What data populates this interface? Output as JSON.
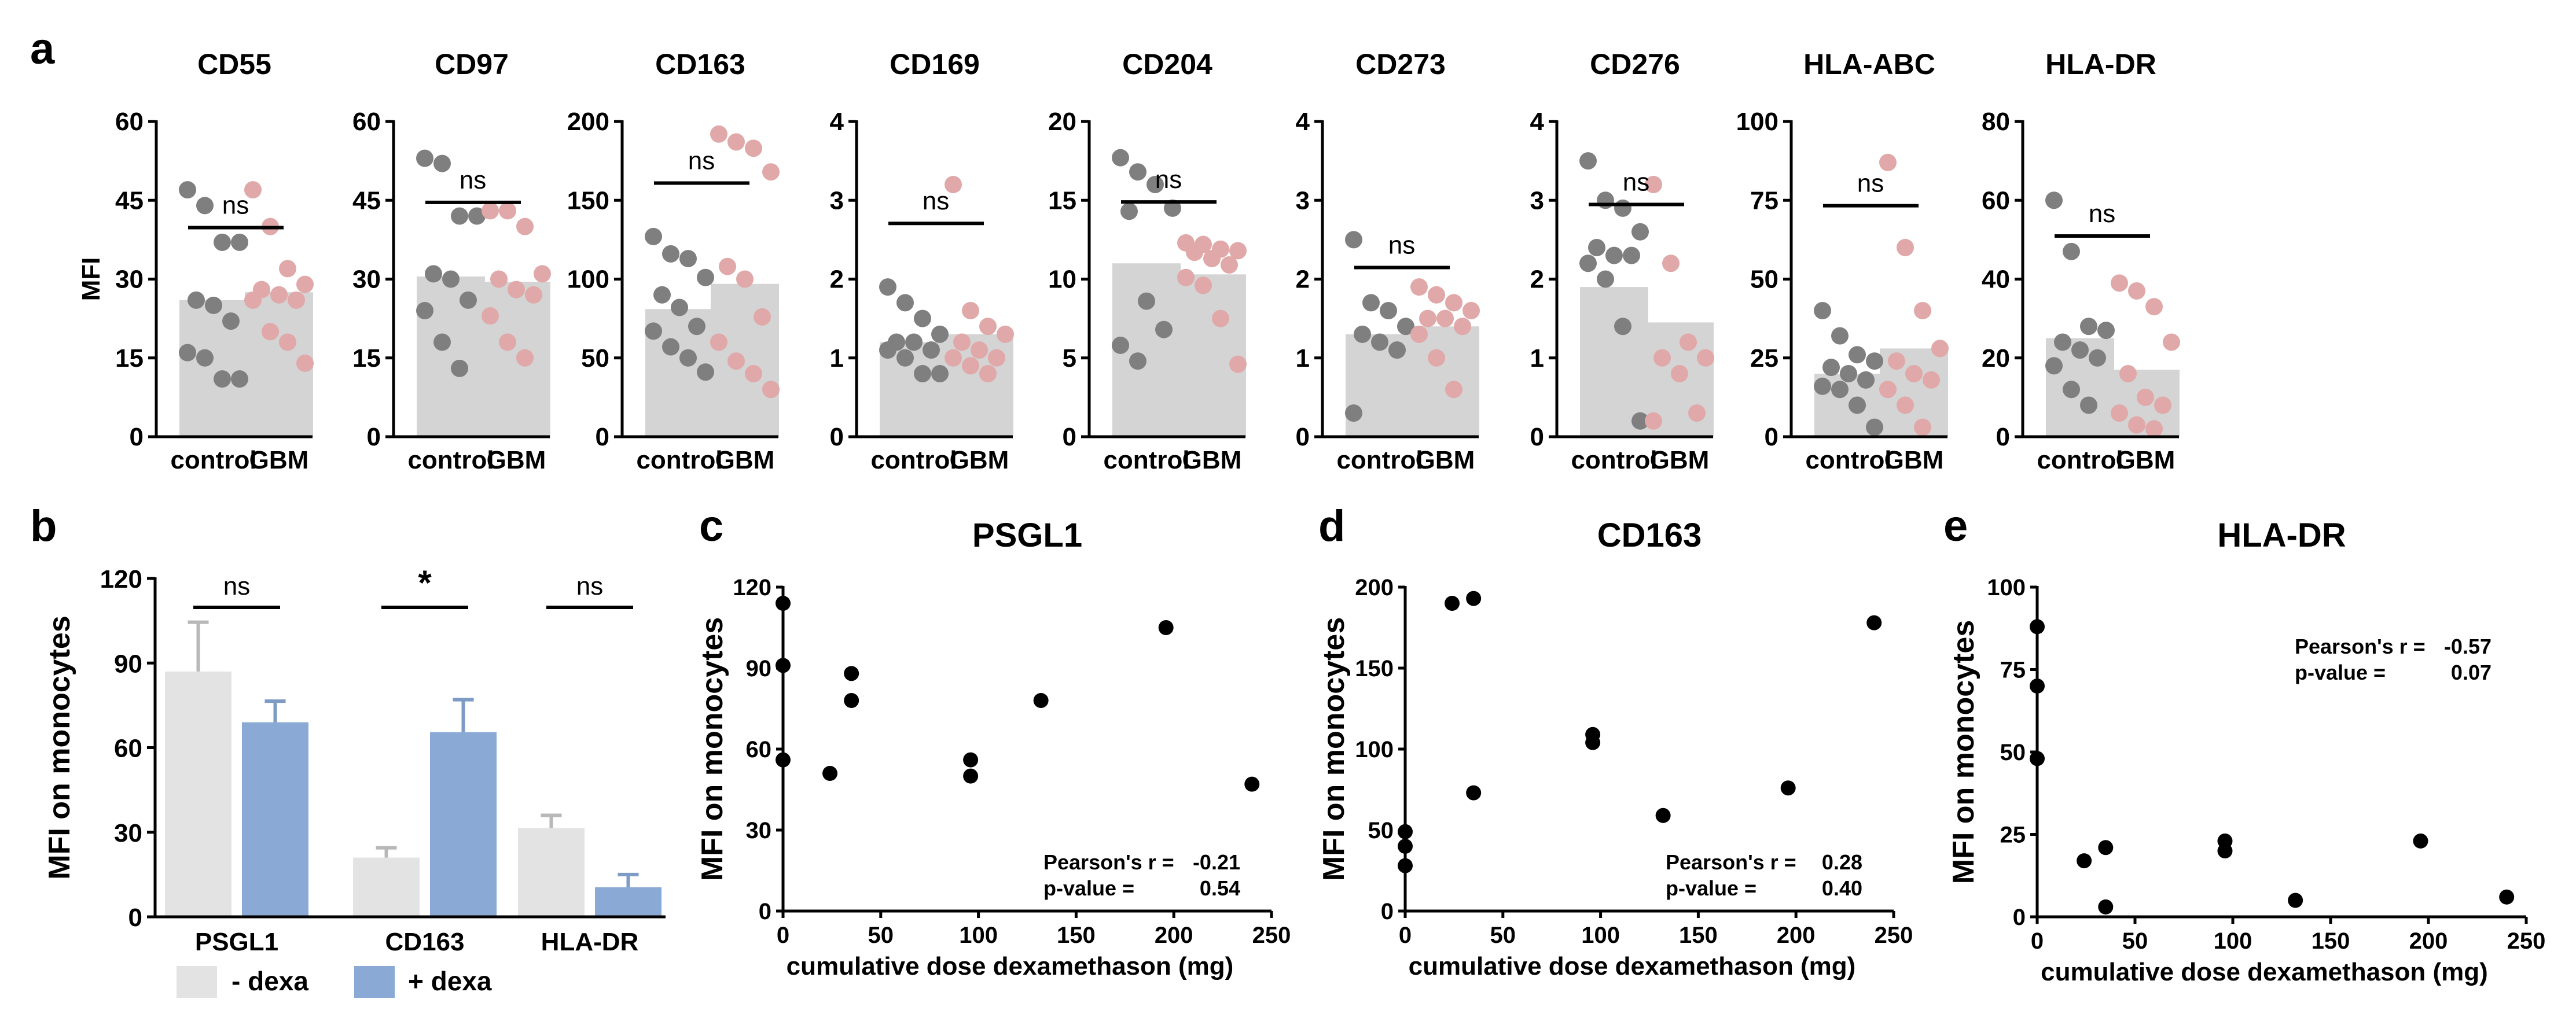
{
  "panel_labels": {
    "a": "a",
    "b": "b",
    "c": "c",
    "d": "d",
    "e": "e"
  },
  "colors": {
    "control_dot": "#7f7f7f",
    "gbm_dot": "#e0a8a8",
    "bar_a": "#d4d4d4",
    "bar_minus": "#e3e3e3",
    "bar_plus": "#8aaad5",
    "err_minus": "#b8b8b8",
    "err_plus": "#7e9bc5",
    "scatter_dot": "#000000"
  },
  "chart_data": [
    {
      "id": "a1",
      "type": "bar",
      "title": "CD55",
      "ylabel": "MFI",
      "ylim": [
        0,
        60
      ],
      "yticks": [
        "0",
        "15",
        "30",
        "45",
        "60"
      ],
      "categories": [
        "control",
        "GBM"
      ],
      "values": [
        26,
        27.5
      ],
      "sig": "ns",
      "points": [
        [
          47,
          44,
          37,
          37,
          26,
          25,
          22,
          16,
          15,
          11,
          11
        ],
        [
          47,
          40,
          32,
          29,
          28,
          27,
          26,
          26,
          20,
          18,
          14
        ]
      ]
    },
    {
      "id": "a2",
      "type": "bar",
      "title": "CD97",
      "ylabel": "",
      "ylim": [
        0,
        60
      ],
      "yticks": [
        "0",
        "15",
        "30",
        "45",
        "60"
      ],
      "categories": [
        "control",
        "GBM"
      ],
      "values": [
        30.5,
        29.5
      ],
      "sig": "ns",
      "points": [
        [
          53,
          52,
          42,
          42,
          31,
          30,
          26,
          24,
          18,
          13
        ],
        [
          43,
          43,
          40,
          31,
          30,
          28,
          27,
          23,
          18,
          15
        ]
      ]
    },
    {
      "id": "a3",
      "type": "bar",
      "title": "CD163",
      "ylabel": "",
      "ylim": [
        0,
        200
      ],
      "yticks": [
        "0",
        "50",
        "100",
        "150",
        "200"
      ],
      "categories": [
        "control",
        "GBM"
      ],
      "values": [
        81,
        97
      ],
      "sig": "ns",
      "points": [
        [
          127,
          116,
          113,
          101,
          90,
          82,
          70,
          67,
          57,
          50,
          41
        ],
        [
          192,
          187,
          183,
          168,
          108,
          100,
          76,
          60,
          48,
          40,
          30
        ]
      ]
    },
    {
      "id": "a4",
      "type": "bar",
      "title": "CD169",
      "ylabel": "",
      "ylim": [
        0,
        4
      ],
      "yticks": [
        "0",
        "1",
        "2",
        "3",
        "4"
      ],
      "categories": [
        "control",
        "GBM"
      ],
      "values": [
        1.2,
        1.3
      ],
      "sig": "ns",
      "points": [
        [
          1.9,
          1.7,
          1.5,
          1.3,
          1.2,
          1.2,
          1.1,
          1.1,
          1.0,
          0.8,
          0.8
        ],
        [
          3.2,
          1.6,
          1.4,
          1.3,
          1.2,
          1.1,
          1.0,
          1.0,
          0.9,
          0.8
        ]
      ]
    },
    {
      "id": "a5",
      "type": "bar",
      "title": "CD204",
      "ylabel": "",
      "ylim": [
        0,
        20
      ],
      "yticks": [
        "0",
        "5",
        "10",
        "15",
        "20"
      ],
      "categories": [
        "control",
        "GBM"
      ],
      "values": [
        11,
        10.3
      ],
      "sig": "ns",
      "points": [
        [
          17.7,
          16.8,
          16.0,
          14.5,
          14.3,
          8.6,
          6.8,
          5.8,
          4.8
        ],
        [
          12.3,
          12.2,
          11.9,
          11.8,
          11.7,
          11.3,
          10.9,
          10.1,
          9.6,
          7.5,
          4.6
        ]
      ]
    },
    {
      "id": "a6",
      "type": "bar",
      "title": "CD273",
      "ylabel": "",
      "ylim": [
        0,
        4
      ],
      "yticks": [
        "0",
        "1",
        "2",
        "3",
        "4"
      ],
      "categories": [
        "control",
        "GBM"
      ],
      "values": [
        1.3,
        1.4
      ],
      "sig": "ns",
      "points": [
        [
          2.5,
          1.7,
          1.6,
          1.4,
          1.3,
          1.2,
          1.1,
          0.3
        ],
        [
          1.9,
          1.8,
          1.7,
          1.6,
          1.5,
          1.5,
          1.4,
          1.3,
          1.0,
          0.6
        ]
      ]
    },
    {
      "id": "a7",
      "type": "bar",
      "title": "CD276",
      "ylabel": "",
      "ylim": [
        0,
        4
      ],
      "yticks": [
        "0",
        "1",
        "2",
        "3",
        "4"
      ],
      "categories": [
        "control",
        "GBM"
      ],
      "values": [
        1.9,
        1.45
      ],
      "sig": "ns",
      "points": [
        [
          3.5,
          3.0,
          2.9,
          2.6,
          2.4,
          2.3,
          2.3,
          2.2,
          2.0,
          1.4,
          0.2
        ],
        [
          3.2,
          2.2,
          1.2,
          1.0,
          1.0,
          0.8,
          0.3,
          0.2
        ]
      ]
    },
    {
      "id": "a8",
      "type": "bar",
      "title": "HLA-ABC",
      "ylabel": "",
      "ylim": [
        0,
        100
      ],
      "yticks": [
        "0",
        "25",
        "50",
        "75",
        "100"
      ],
      "categories": [
        "control",
        "GBM"
      ],
      "values": [
        20,
        28
      ],
      "sig": "ns",
      "points": [
        [
          40,
          32,
          26,
          24,
          22,
          20,
          18,
          16,
          15,
          10,
          3
        ],
        [
          87,
          60,
          40,
          28,
          24,
          20,
          18,
          15,
          10,
          3
        ]
      ]
    },
    {
      "id": "a9",
      "type": "bar",
      "title": "HLA-DR",
      "ylabel": "",
      "ylim": [
        0,
        80
      ],
      "yticks": [
        "0",
        "20",
        "40",
        "60",
        "80"
      ],
      "categories": [
        "control",
        "GBM"
      ],
      "values": [
        25,
        17
      ],
      "sig": "ns",
      "points": [
        [
          60,
          47,
          28,
          27,
          24,
          22,
          20,
          18,
          12,
          8
        ],
        [
          39,
          37,
          33,
          24,
          16,
          10,
          8,
          6,
          3,
          2
        ]
      ]
    },
    {
      "id": "b",
      "type": "bar",
      "title": "",
      "ylabel": "MFI on monocytes",
      "ylim": [
        0,
        120
      ],
      "yticks": [
        "0",
        "30",
        "60",
        "90",
        "120"
      ],
      "categories": [
        "PSGL1",
        "CD163",
        "HLA-DR"
      ],
      "series": [
        {
          "name": "- dexa",
          "values": [
            87,
            21,
            31.5
          ],
          "errors": [
            17.5,
            3.5,
            4.5
          ]
        },
        {
          "name": "+ dexa",
          "values": [
            69,
            65.5,
            10.5
          ],
          "errors": [
            7.5,
            11.5,
            4.5
          ]
        }
      ],
      "sig": [
        "ns",
        "*",
        "ns"
      ],
      "legend": [
        "- dexa",
        "+ dexa"
      ]
    },
    {
      "id": "c",
      "type": "scatter",
      "title": "PSGL1",
      "xlabel": "cumulative dose dexamethason (mg)",
      "ylabel": "MFI on monocytes",
      "xlim": [
        0,
        250
      ],
      "ylim": [
        0,
        120
      ],
      "xticks": [
        "0",
        "50",
        "100",
        "150",
        "200",
        "250"
      ],
      "yticks": [
        "0",
        "30",
        "60",
        "90",
        "120"
      ],
      "x": [
        0,
        0,
        0,
        24,
        35,
        35,
        96,
        96,
        132,
        196,
        240
      ],
      "y": [
        114,
        91,
        56,
        51,
        88,
        78,
        56,
        50,
        78,
        105,
        47
      ],
      "stats": {
        "r_label": "Pearson's r =",
        "r_value": "-0.21",
        "p_label": "p-value =",
        "p_value": "0.54"
      }
    },
    {
      "id": "d",
      "type": "scatter",
      "title": "CD163",
      "xlabel": "cumulative dose dexamethason (mg)",
      "ylabel": "MFI on monocytes",
      "xlim": [
        0,
        250
      ],
      "ylim": [
        0,
        200
      ],
      "xticks": [
        "0",
        "50",
        "100",
        "150",
        "200",
        "250"
      ],
      "yticks": [
        "0",
        "50",
        "100",
        "150",
        "200"
      ],
      "x": [
        0,
        0,
        0,
        24,
        35,
        35,
        96,
        96,
        132,
        196,
        240
      ],
      "y": [
        49,
        40,
        28,
        190,
        193,
        73,
        109,
        104,
        59,
        76,
        178
      ],
      "stats": {
        "r_label": "Pearson's r =",
        "r_value": "0.28",
        "p_label": "p-value =",
        "p_value": "0.40"
      }
    },
    {
      "id": "e",
      "type": "scatter",
      "title": "HLA-DR",
      "xlabel": "cumulative dose dexamethason (mg)",
      "ylabel": "MFI on monocytes",
      "xlim": [
        0,
        250
      ],
      "ylim": [
        0,
        100
      ],
      "xticks": [
        "0",
        "50",
        "100",
        "150",
        "200",
        "250"
      ],
      "yticks": [
        "0",
        "25",
        "50",
        "75",
        "100"
      ],
      "x": [
        0,
        0,
        0,
        24,
        35,
        35,
        96,
        96,
        132,
        196,
        240
      ],
      "y": [
        88,
        70,
        48,
        17,
        21,
        3,
        23,
        20,
        5,
        23,
        6
      ],
      "stats": {
        "r_label": "Pearson's r =",
        "r_value": "-0.57",
        "p_label": "p-value =",
        "p_value": "0.07"
      }
    }
  ]
}
